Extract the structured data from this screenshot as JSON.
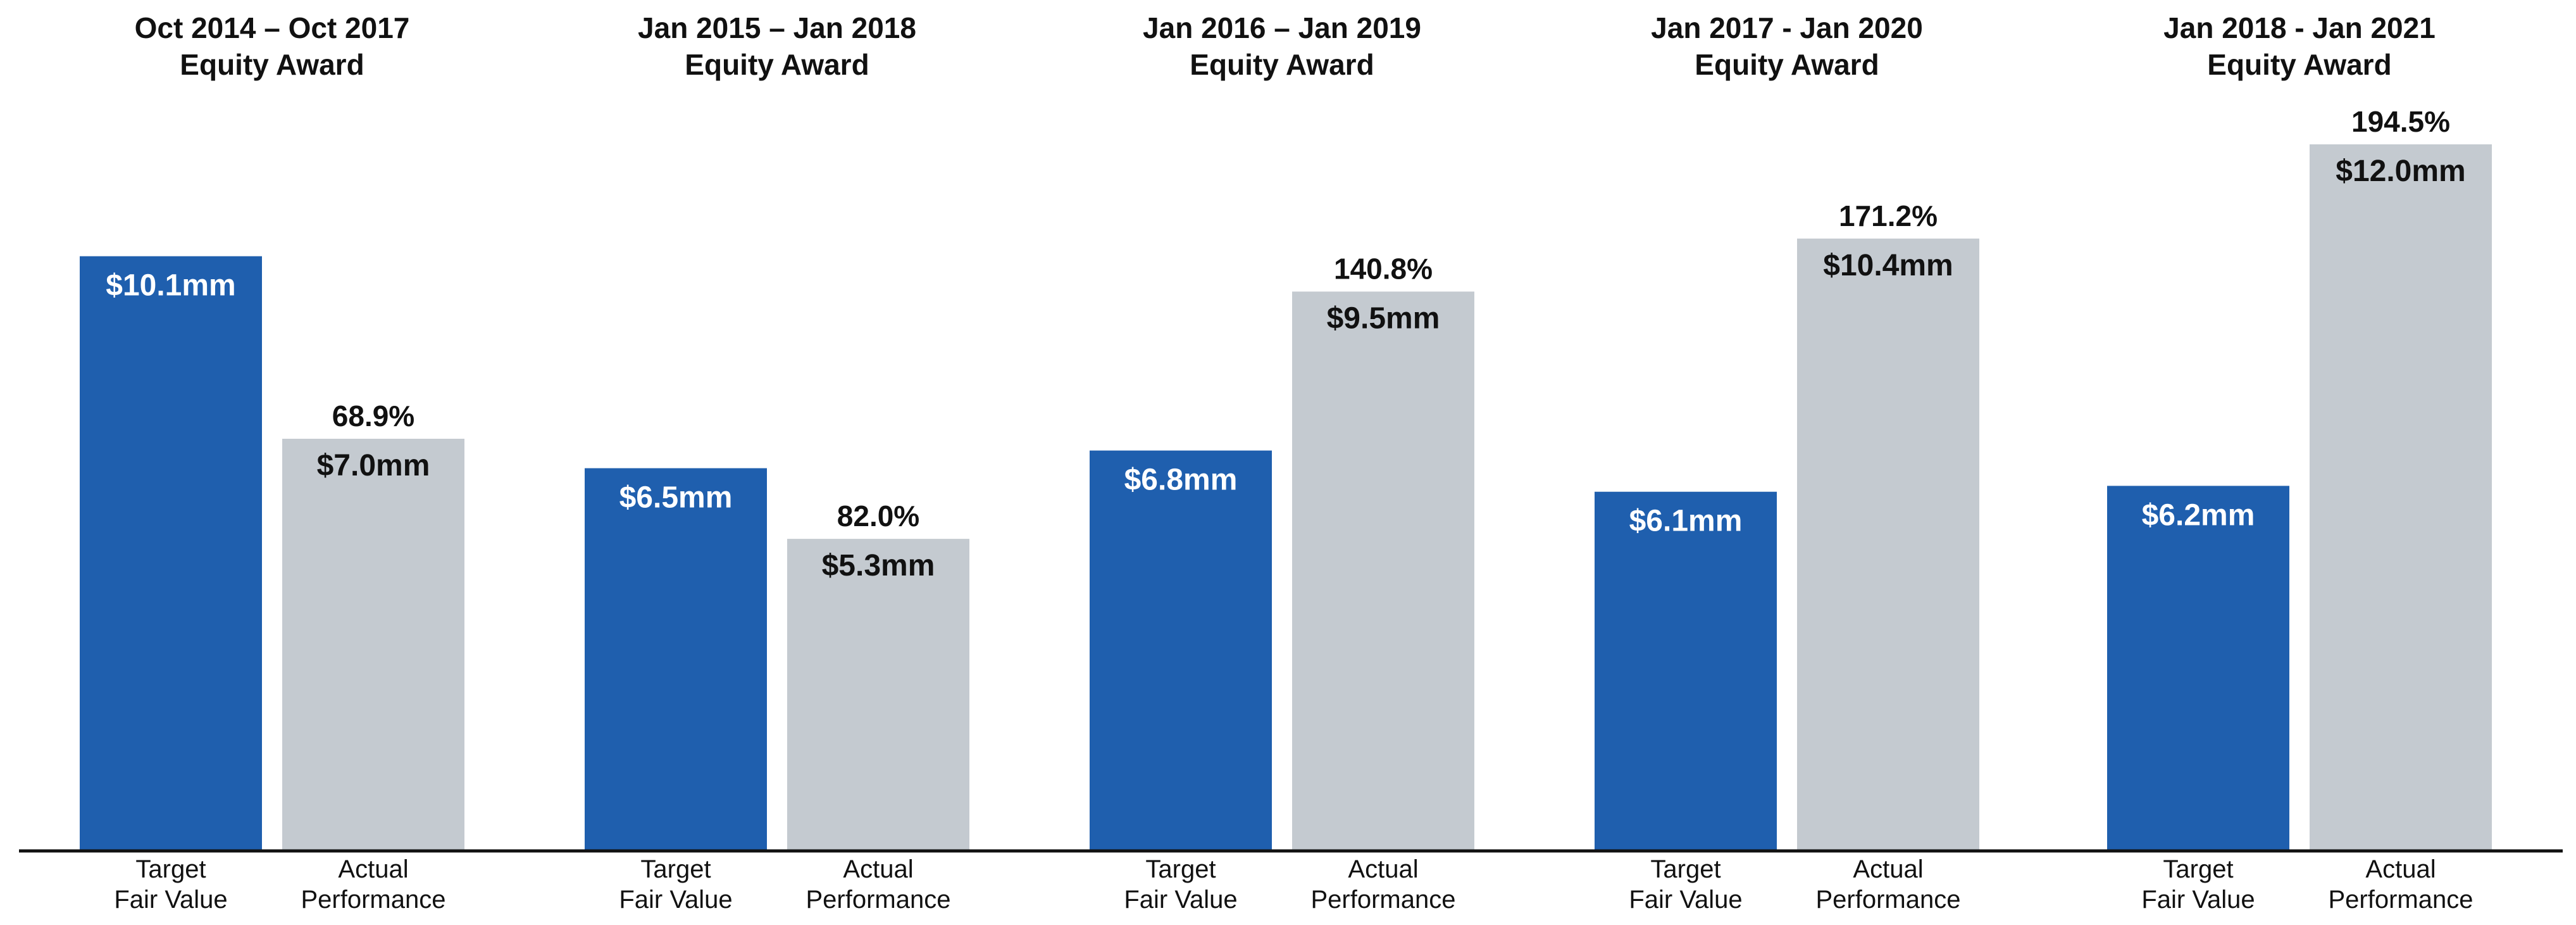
{
  "chart_data": {
    "type": "bar",
    "series": [
      {
        "name": "Target Fair Value",
        "color": "#1f5fae"
      },
      {
        "name": "Actual Performance",
        "color": "#c4cad0"
      }
    ],
    "x_tick_labels": [
      [
        "Target",
        "Fair Value"
      ],
      [
        "Actual",
        "Performance"
      ]
    ],
    "ylim": [
      0,
      12.0
    ],
    "groups": [
      {
        "title": [
          "Oct 2014 – Oct 2017",
          "Equity Award"
        ],
        "target": 10.1,
        "target_label": "$10.1mm",
        "actual": 7.0,
        "actual_label": "$7.0mm",
        "percent_label": "68.9%"
      },
      {
        "title": [
          "Jan 2015 – Jan 2018",
          "Equity Award"
        ],
        "target": 6.5,
        "target_label": "$6.5mm",
        "actual": 5.3,
        "actual_label": "$5.3mm",
        "percent_label": "82.0%"
      },
      {
        "title": [
          "Jan 2016 – Jan 2019",
          "Equity Award"
        ],
        "target": 6.8,
        "target_label": "$6.8mm",
        "actual": 9.5,
        "actual_label": "$9.5mm",
        "percent_label": "140.8%"
      },
      {
        "title": [
          "Jan 2017 - Jan 2020",
          "Equity Award"
        ],
        "target": 6.1,
        "target_label": "$6.1mm",
        "actual": 10.4,
        "actual_label": "$10.4mm",
        "percent_label": "171.2%"
      },
      {
        "title": [
          "Jan 2018 - Jan 2021",
          "Equity Award"
        ],
        "target": 6.2,
        "target_label": "$6.2mm",
        "actual": 12.0,
        "actual_label": "$12.0mm",
        "percent_label": "194.5%"
      }
    ]
  }
}
